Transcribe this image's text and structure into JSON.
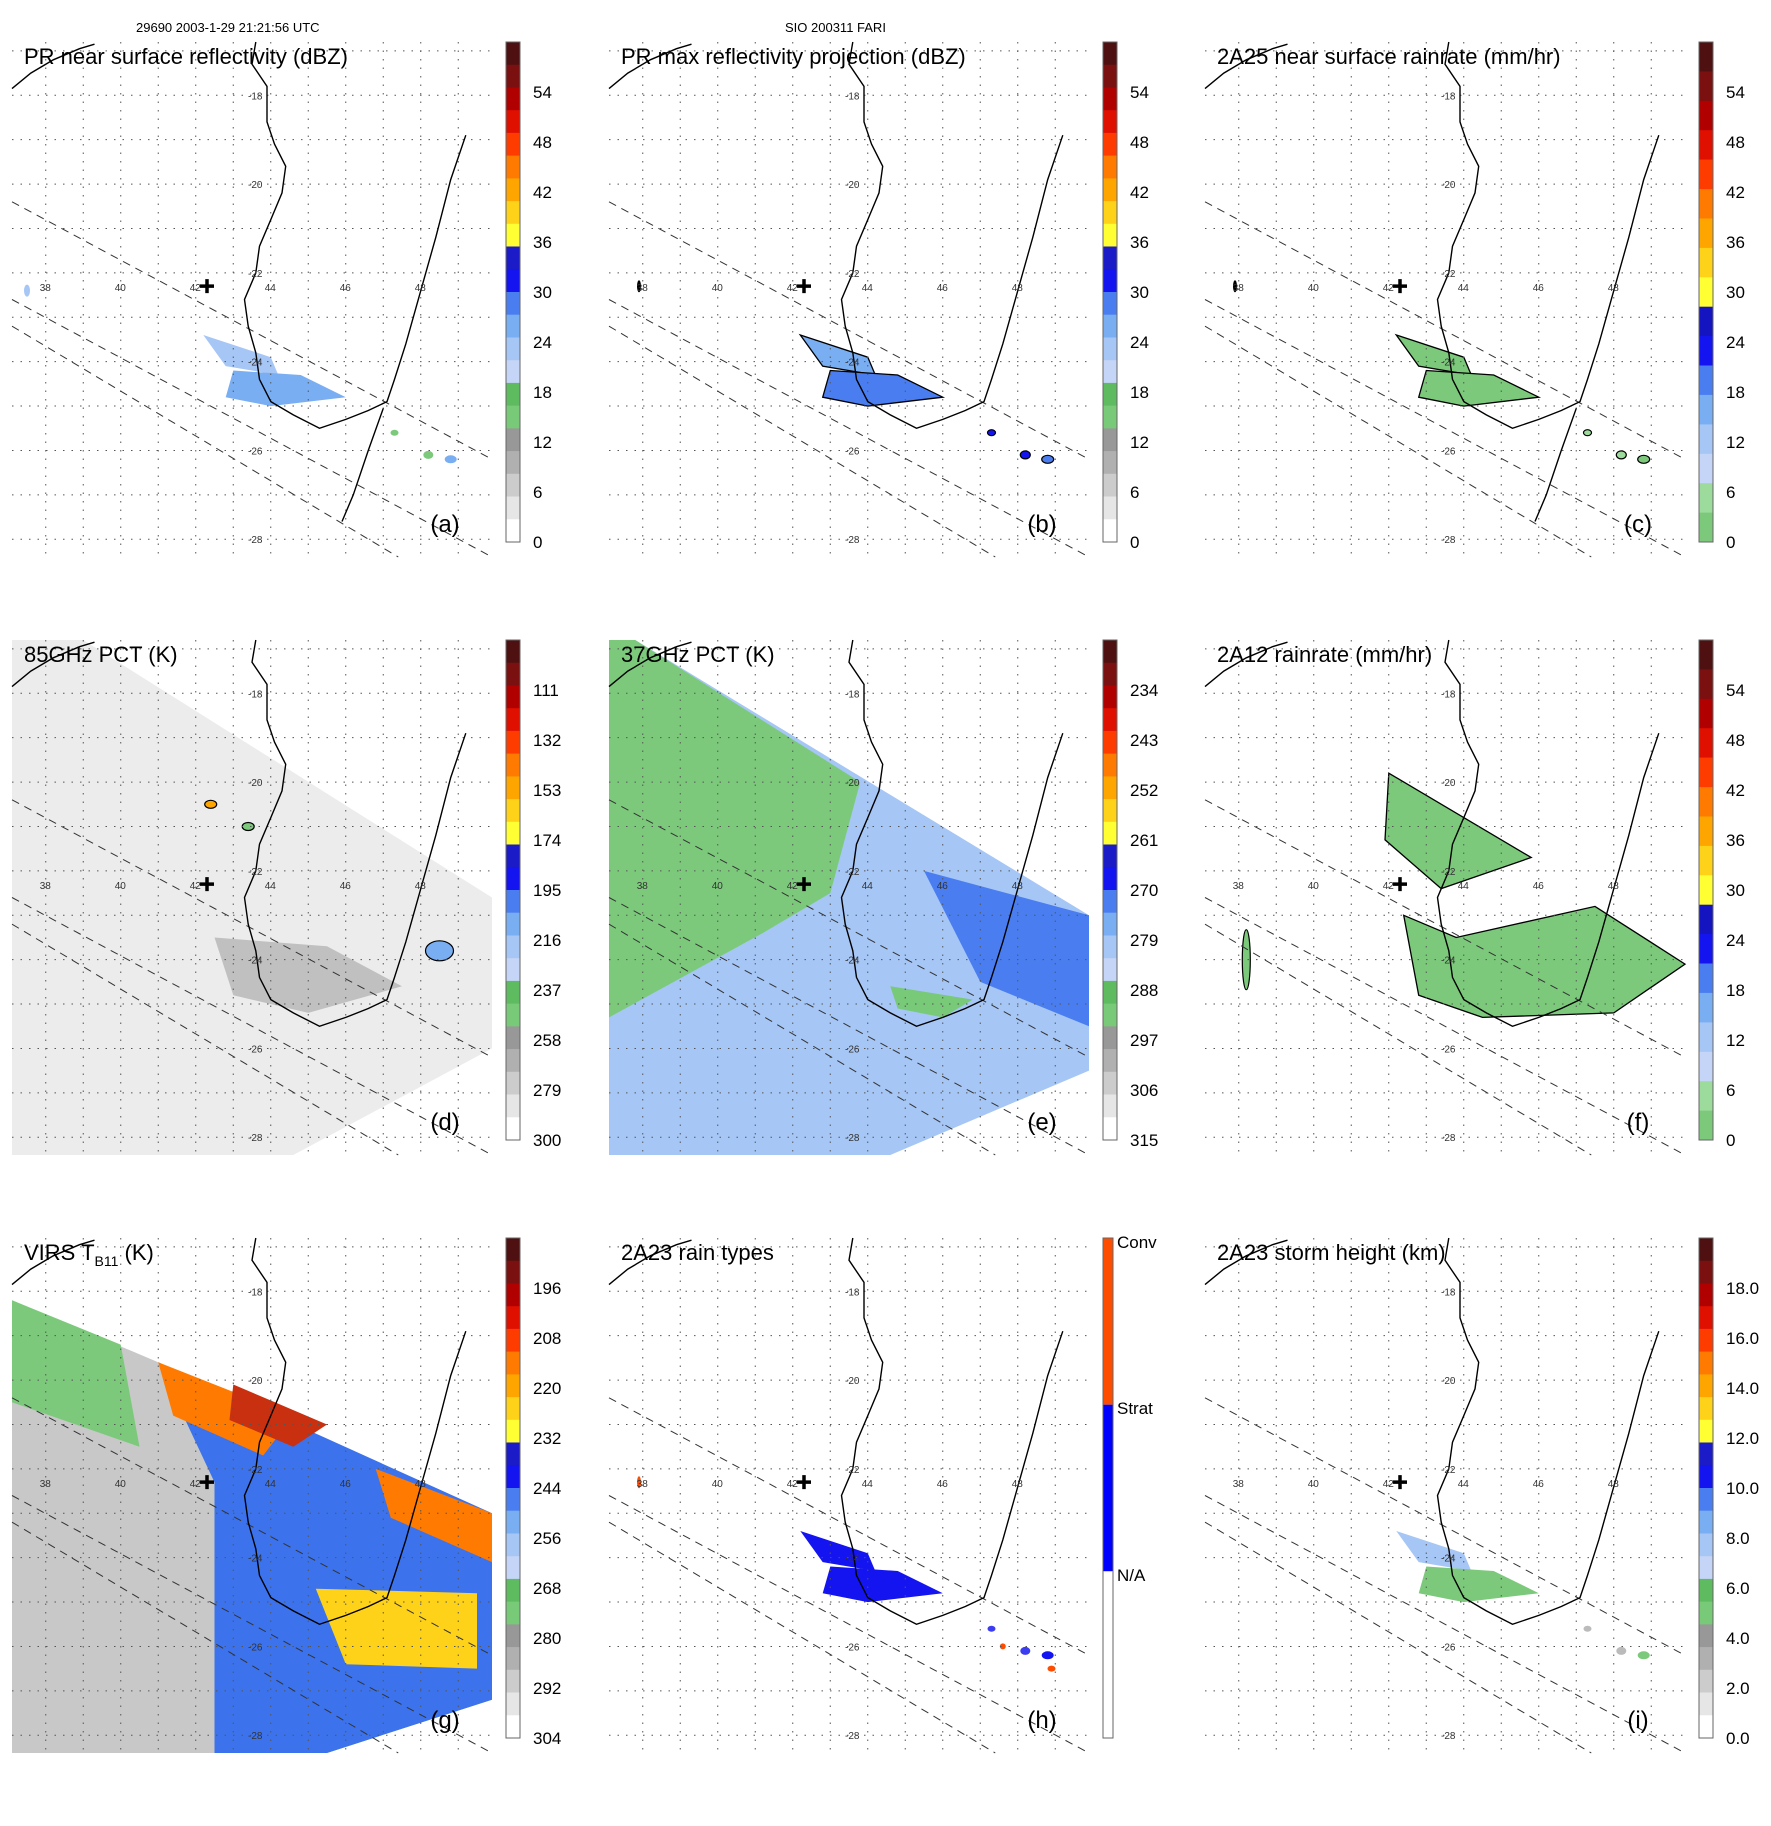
{
  "header": {
    "orbit_info": "29690 2003-1-29 21:21:56 UTC",
    "case_id": "SIO 200311 FARI"
  },
  "lat_labels": [
    "-18",
    "-20",
    "-22",
    "-24",
    "-26",
    "-28"
  ],
  "lon_labels": [
    "38",
    "40",
    "42",
    "44",
    "46",
    "48"
  ],
  "colors": {
    "rain": [
      "#ffffff",
      "#ebebeb",
      "#d2d2d2",
      "#b4b4b4",
      "#989898",
      "#7cc97c",
      "#64bf64",
      "#c7d6f7",
      "#9cc3f5",
      "#6fa8f2",
      "#3c73ec",
      "#0b0ef0",
      "#1b1bd4",
      "#ffff33",
      "#ffd31a",
      "#ffa500",
      "#ff7000",
      "#ff3a00",
      "#e01000",
      "#b00000",
      "#7a1010",
      "#4e1010"
    ],
    "conv": "#ff4d00",
    "strat": "#0000ff",
    "na": "#ffffff"
  },
  "panels": [
    {
      "id": "a",
      "title": "PR near surface reflectivity (dBZ)",
      "letter": "(a)",
      "ticks": [
        "54",
        "48",
        "42",
        "36",
        "30",
        "24",
        "18",
        "12",
        "6",
        "0"
      ],
      "scale": "dbz"
    },
    {
      "id": "b",
      "title": "PR max reflectivity projection (dBZ)",
      "letter": "(b)",
      "ticks": [
        "54",
        "48",
        "42",
        "36",
        "30",
        "24",
        "18",
        "12",
        "6",
        "0"
      ],
      "scale": "dbz"
    },
    {
      "id": "c",
      "title": "2A25 near surface rainrate (mm/hr)",
      "letter": "(c)",
      "ticks": [
        "54",
        "48",
        "42",
        "36",
        "30",
        "24",
        "18",
        "12",
        "6",
        "0"
      ],
      "scale": "rain"
    },
    {
      "id": "d",
      "title": "85GHz PCT (K)",
      "letter": "(d)",
      "ticks": [
        "111",
        "132",
        "153",
        "174",
        "195",
        "216",
        "237",
        "258",
        "279",
        "300"
      ],
      "scale": "pct85"
    },
    {
      "id": "e",
      "title": "37GHz PCT (K)",
      "letter": "(e)",
      "ticks": [
        "234",
        "243",
        "252",
        "261",
        "270",
        "279",
        "288",
        "297",
        "306",
        "315"
      ],
      "scale": "pct37"
    },
    {
      "id": "f",
      "title": "2A12 rainrate (mm/hr)",
      "letter": "(f)",
      "ticks": [
        "54",
        "48",
        "42",
        "36",
        "30",
        "24",
        "18",
        "12",
        "6",
        "0"
      ],
      "scale": "rain"
    },
    {
      "id": "g",
      "title": "VIRS T",
      "title_sub": "B11",
      "title_suffix": " (K)",
      "letter": "(g)",
      "ticks": [
        "196",
        "208",
        "220",
        "232",
        "244",
        "256",
        "268",
        "280",
        "292",
        "304"
      ],
      "scale": "virs"
    },
    {
      "id": "h",
      "title": "2A23 rain types",
      "letter": "(h)",
      "ticks": [
        "Conv",
        "Strat",
        "N/A"
      ],
      "scale": "types"
    },
    {
      "id": "i",
      "title": "2A23 storm height (km)",
      "letter": "(i)",
      "ticks": [
        "18.0",
        "16.0",
        "14.0",
        "12.0",
        "10.0",
        "8.0",
        "6.0",
        "4.0",
        "2.0",
        "0.0"
      ],
      "scale": "height"
    }
  ]
}
